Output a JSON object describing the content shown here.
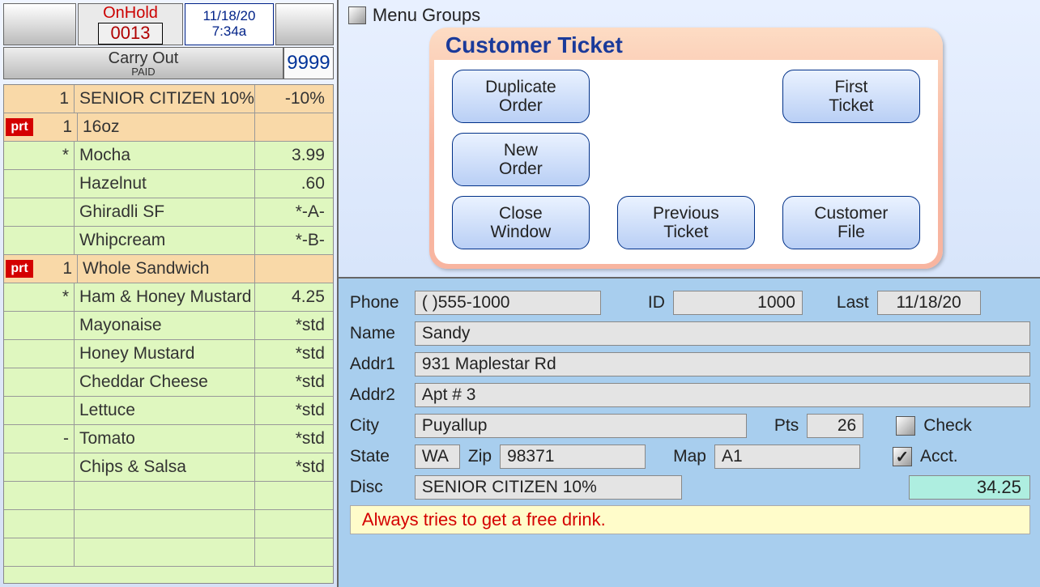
{
  "header": {
    "status_label": "OnHold",
    "ticket_no": "0013",
    "date": "11/18/20",
    "time": "7:34a",
    "order_type": "Carry Out",
    "paid_label": "PAID",
    "station": "9999"
  },
  "ticket_lines": [
    {
      "tag": "",
      "qty": "1",
      "desc": "SENIOR CITIZEN 10%",
      "price": "-10%",
      "hi": true,
      "bold": false,
      "tag_prt": false
    },
    {
      "tag": "prt",
      "qty": "1",
      "desc": "16oz",
      "price": "",
      "hi": true,
      "bold": true,
      "tag_prt": true
    },
    {
      "tag": "",
      "qty": "*",
      "desc": "Mocha",
      "price": "3.99",
      "hi": false,
      "bold": false,
      "tag_prt": false
    },
    {
      "tag": "",
      "qty": "",
      "desc": "Hazelnut",
      "price": ".60",
      "hi": false,
      "bold": false,
      "tag_prt": false
    },
    {
      "tag": "",
      "qty": "",
      "desc": "Ghiradli SF",
      "price": "*-A-",
      "hi": false,
      "bold": false,
      "tag_prt": false
    },
    {
      "tag": "",
      "qty": "",
      "desc": "Whipcream",
      "price": "*-B-",
      "hi": false,
      "bold": false,
      "tag_prt": false
    },
    {
      "tag": "prt",
      "qty": "1",
      "desc": "Whole Sandwich",
      "price": "",
      "hi": true,
      "bold": true,
      "tag_prt": true
    },
    {
      "tag": "",
      "qty": "*",
      "desc": "Ham & Honey Mustard",
      "price": "4.25",
      "hi": false,
      "bold": false,
      "tag_prt": false
    },
    {
      "tag": "",
      "qty": "",
      "desc": "Mayonaise",
      "price": "*std",
      "hi": false,
      "bold": false,
      "tag_prt": false
    },
    {
      "tag": "",
      "qty": "",
      "desc": "Honey Mustard",
      "price": "*std",
      "hi": false,
      "bold": false,
      "tag_prt": false
    },
    {
      "tag": "",
      "qty": "",
      "desc": "Cheddar Cheese",
      "price": "*std",
      "hi": false,
      "bold": false,
      "tag_prt": false
    },
    {
      "tag": "",
      "qty": "",
      "desc": "Lettuce",
      "price": "*std",
      "hi": false,
      "bold": false,
      "tag_prt": false
    },
    {
      "tag": "",
      "qty": "-",
      "desc": "Tomato",
      "price": "*std",
      "hi": false,
      "bold": false,
      "tag_prt": false
    },
    {
      "tag": "",
      "qty": "",
      "desc": "Chips & Salsa",
      "price": "*std",
      "hi": false,
      "bold": false,
      "tag_prt": false
    },
    {
      "tag": "",
      "qty": "",
      "desc": "",
      "price": "",
      "hi": false,
      "bold": false,
      "tag_prt": false
    },
    {
      "tag": "",
      "qty": "",
      "desc": "",
      "price": "",
      "hi": false,
      "bold": false,
      "tag_prt": false
    },
    {
      "tag": "",
      "qty": "",
      "desc": "",
      "price": "",
      "hi": false,
      "bold": false,
      "tag_prt": false
    }
  ],
  "menu_groups_label": "Menu Groups",
  "customer_ticket": {
    "title": "Customer Ticket",
    "duplicate_order": "Duplicate\nOrder",
    "first_ticket": "First\nTicket",
    "new_order": "New\nOrder",
    "close_window": "Close\nWindow",
    "previous_ticket": "Previous\nTicket",
    "customer_file": "Customer\nFile"
  },
  "customer": {
    "labels": {
      "phone": "Phone",
      "id": "ID",
      "last": "Last",
      "name": "Name",
      "addr1": "Addr1",
      "addr2": "Addr2",
      "city": "City",
      "pts": "Pts",
      "check": "Check",
      "state": "State",
      "zip": "Zip",
      "map": "Map",
      "acct": "Acct.",
      "disc": "Disc"
    },
    "phone": "(      )555-1000",
    "id": "1000",
    "last": "11/18/20",
    "name": "Sandy",
    "addr1": "931 Maplestar Rd",
    "addr2": "Apt # 3",
    "city": "Puyallup",
    "pts": "26",
    "check": false,
    "state": "WA",
    "zip": "98371",
    "map": "A1",
    "acct": true,
    "disc": "SENIOR CITIZEN 10%",
    "balance": "34.25",
    "note": "Always tries to get a free drink."
  },
  "colors": {
    "accent_blue": "#1a3a9a",
    "highlight_row": "#f9d9a8",
    "ticket_bg": "#dff7bf",
    "form_bg": "#a8ceee",
    "note_bg": "#fffcca",
    "note_text": "#d40000",
    "balance_bg": "#aeeee0"
  }
}
